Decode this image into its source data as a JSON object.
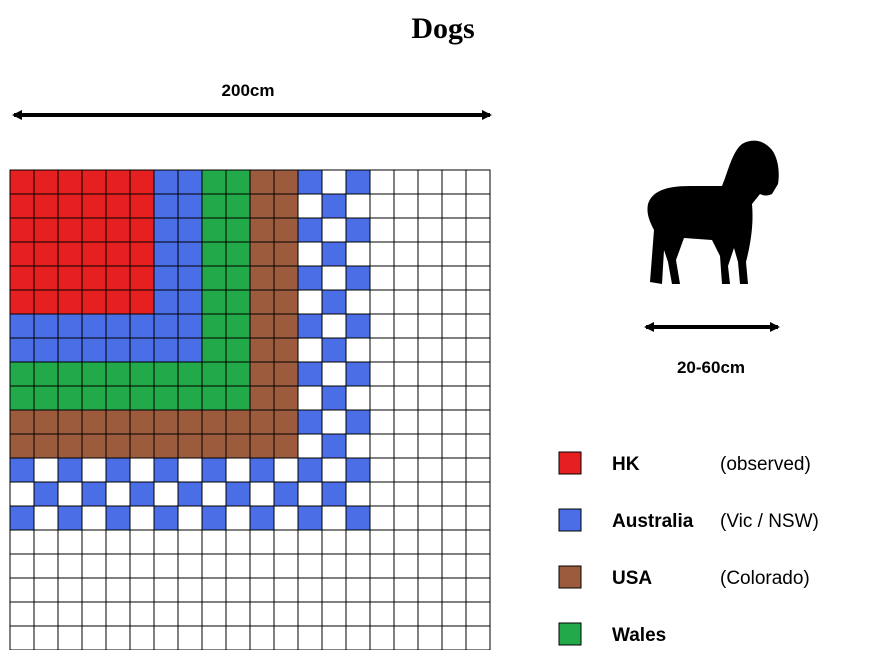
{
  "title": "Dogs",
  "grid_width_label": "200cm",
  "dog_width_label": "20-60cm",
  "legend": [
    {
      "name": "HK",
      "note": "(observed)",
      "color": "#e62020"
    },
    {
      "name": "Australia",
      "note": "(Vic / NSW)",
      "color": "#4a6ee6"
    },
    {
      "name": "USA",
      "note": "(Colorado)",
      "color": "#9c5b3c"
    },
    {
      "name": "Wales",
      "color": "#22aa4a"
    }
  ]
}
